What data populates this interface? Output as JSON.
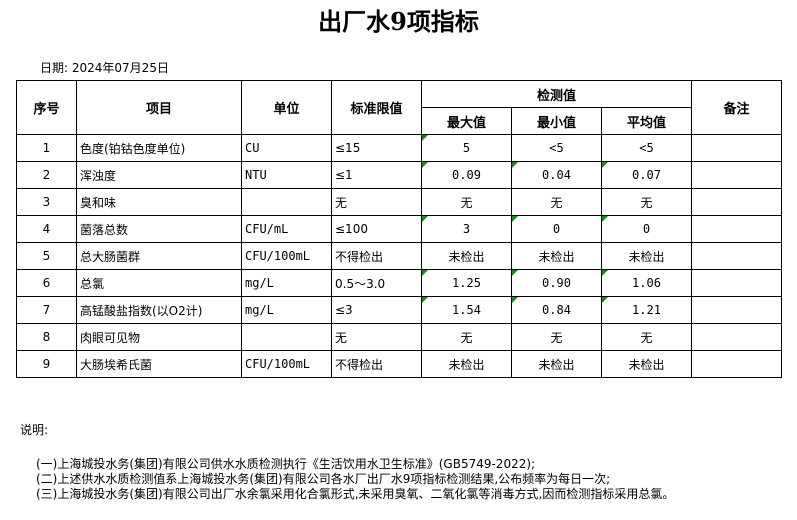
{
  "title": "出厂水9项指标",
  "date_label": "日期:",
  "date_value": "2024年07月25日",
  "headers": {
    "no": "序号",
    "item": "项目",
    "unit": "单位",
    "limit": "标准限值",
    "measured": "检测值",
    "max": "最大值",
    "min": "最小值",
    "avg": "平均值",
    "remark": "备注"
  },
  "rows": [
    {
      "no": "1",
      "item": "色度(铂钴色度单位)",
      "unit": "CU",
      "limit": "≤15",
      "max": "5",
      "min": "<5",
      "avg": "<5",
      "marks": [
        true,
        false,
        false
      ]
    },
    {
      "no": "2",
      "item": "浑浊度",
      "unit": "NTU",
      "limit": "≤1",
      "max": "0.09",
      "min": "0.04",
      "avg": "0.07",
      "marks": [
        true,
        true,
        true
      ]
    },
    {
      "no": "3",
      "item": "臭和味",
      "unit": "",
      "limit": "无",
      "max": "无",
      "min": "无",
      "avg": "无",
      "marks": [
        false,
        false,
        false
      ]
    },
    {
      "no": "4",
      "item": "菌落总数",
      "unit": "CFU/mL",
      "limit": "≤100",
      "max": "3",
      "min": "0",
      "avg": "0",
      "marks": [
        true,
        true,
        true
      ]
    },
    {
      "no": "5",
      "item": "总大肠菌群",
      "unit": "CFU/100mL",
      "limit": "不得检出",
      "max": "未检出",
      "min": "未检出",
      "avg": "未检出",
      "marks": [
        false,
        false,
        false
      ]
    },
    {
      "no": "6",
      "item": "总氯",
      "unit": "mg/L",
      "limit": "0.5～3.0",
      "max": "1.25",
      "min": "0.90",
      "avg": "1.06",
      "marks": [
        true,
        true,
        true
      ]
    },
    {
      "no": "7",
      "item": "高锰酸盐指数(以O2计)",
      "unit": "mg/L",
      "limit": "≤3",
      "max": "1.54",
      "min": "0.84",
      "avg": "1.21",
      "marks": [
        true,
        true,
        true
      ]
    },
    {
      "no": "8",
      "item": "肉眼可见物",
      "unit": "",
      "limit": "无",
      "max": "无",
      "min": "无",
      "avg": "无",
      "marks": [
        false,
        false,
        false
      ]
    },
    {
      "no": "9",
      "item": "大肠埃希氏菌",
      "unit": "CFU/100mL",
      "limit": "不得检出",
      "max": "未检出",
      "min": "未检出",
      "avg": "未检出",
      "marks": [
        false,
        false,
        false
      ]
    }
  ],
  "notes_label": "说明:",
  "notes": [
    "(一)上海城投水务(集团)有限公司供水水质检测执行《生活饮用水卫生标准》(GB5749-2022);",
    "(二)上述供水水质检测值系上海城投水务(集团)有限公司各水厂出厂水9项指标检测结果,公布频率为每日一次;",
    "(三)上海城投水务(集团)有限公司出厂水余氯采用化合氯形式,未采用臭氧、二氧化氯等消毒方式,因而检测指标采用总氯。"
  ],
  "colors": {
    "cell_marker": "#1a8a1a"
  }
}
